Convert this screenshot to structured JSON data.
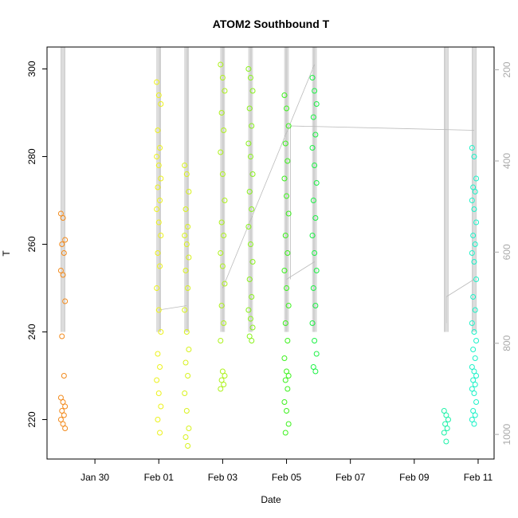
{
  "chart_data": {
    "type": "scatter",
    "title": "ATOM2 Southbound T",
    "xlabel": "Date",
    "ylabel": "T",
    "x_ticks": [
      "Jan 30",
      "Feb 01",
      "Feb 03",
      "Feb 05",
      "Feb 07",
      "Feb 09",
      "Feb 11"
    ],
    "y_ticks": [
      220,
      240,
      260,
      280,
      300
    ],
    "y2_ticks": [
      200,
      400,
      600,
      800,
      1000
    ],
    "xlim": [
      "2024-01-28T12:00",
      "2024-02-11T12:00"
    ],
    "ylim": [
      211,
      305
    ],
    "y2lim": [
      1054,
      150
    ],
    "y2_reversed": true,
    "grid": false,
    "legend": "none",
    "marker": "open-circle",
    "line_color": "#bbbbbb",
    "right_axis_color": "#aaaaaa",
    "series": [
      {
        "color": "#f28a1c",
        "x": "2024-01-29T00:00",
        "y_values": [
          267,
          266,
          261,
          260,
          258,
          254,
          253,
          247,
          239,
          230,
          225,
          224,
          223,
          222,
          221,
          220,
          219,
          218
        ]
      },
      {
        "color": "#ecf21c",
        "x": "2024-02-01T00:00",
        "y_values": [
          297,
          294,
          292,
          286,
          282,
          280,
          278,
          275,
          273,
          270,
          268,
          265,
          262,
          258,
          255,
          250,
          245,
          240,
          235,
          232,
          229,
          226,
          223,
          220,
          217
        ]
      },
      {
        "color": "#d8f21c",
        "x": "2024-02-01T21:00",
        "y_values": [
          278,
          276,
          272,
          268,
          264,
          262,
          260,
          257,
          254,
          250,
          245,
          240,
          236,
          233,
          230,
          226,
          222,
          218,
          216,
          214
        ]
      },
      {
        "color": "#aef21c",
        "x": "2024-02-03T00:00",
        "y_values": [
          301,
          298,
          295,
          290,
          286,
          281,
          276,
          270,
          265,
          262,
          258,
          255,
          251,
          246,
          242,
          238,
          231,
          230,
          229,
          228,
          227
        ]
      },
      {
        "color": "#8af21c",
        "x": "2024-02-03T21:00",
        "y_values": [
          300,
          298,
          295,
          291,
          287,
          283,
          280,
          276,
          272,
          268,
          264,
          260,
          256,
          252,
          248,
          245,
          243,
          241,
          239,
          238
        ]
      },
      {
        "color": "#3cf21c",
        "x": "2024-02-05T00:00",
        "y_values": [
          294,
          291,
          287,
          283,
          279,
          275,
          271,
          267,
          262,
          258,
          254,
          250,
          246,
          242,
          238,
          234,
          231,
          230,
          229,
          227,
          224,
          222,
          219,
          217
        ]
      },
      {
        "color": "#1cf245",
        "x": "2024-02-05T21:00",
        "y_values": [
          298,
          295,
          292,
          289,
          285,
          282,
          278,
          274,
          270,
          266,
          262,
          258,
          254,
          250,
          246,
          242,
          238,
          235,
          232,
          231
        ]
      },
      {
        "color": "#1cf2a8",
        "x": "2024-02-10T00:00",
        "y_values": [
          222,
          221,
          220,
          219,
          218,
          217,
          215
        ]
      },
      {
        "color": "#1cf2c8",
        "x": "2024-02-10T21:00",
        "y_values": [
          282,
          280,
          275,
          273,
          272,
          270,
          268,
          265,
          262,
          260,
          258,
          256,
          252,
          248,
          245,
          242,
          240,
          238,
          236,
          234,
          232,
          231,
          230,
          229,
          228,
          227,
          226,
          224,
          222,
          221,
          220,
          219
        ]
      }
    ]
  }
}
